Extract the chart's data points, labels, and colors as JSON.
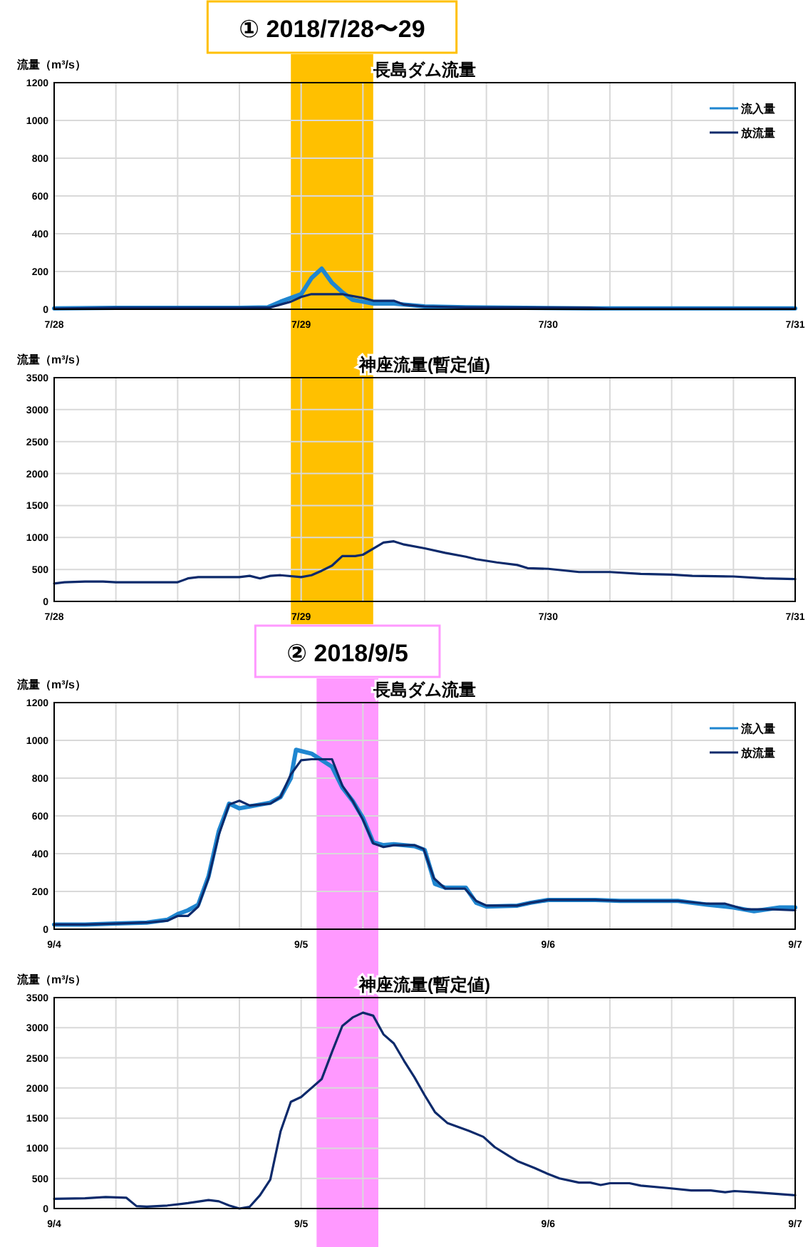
{
  "chart_data": [
    {
      "type": "line",
      "title": "長島ダム流量",
      "ylabel": "流量（m³/s）",
      "xlim": [
        "2018-07-28T00:00",
        "2018-07-31T00:00"
      ],
      "ylim": [
        0,
        1200
      ],
      "xticks": [
        {
          "value": "2018-07-28T00:00",
          "label": "7/28"
        },
        {
          "value": "2018-07-28T06:00",
          "label": null
        },
        {
          "value": "2018-07-28T12:00",
          "label": null
        },
        {
          "value": "2018-07-28T18:00",
          "label": null
        },
        {
          "value": "2018-07-29T00:00",
          "label": "7/29"
        },
        {
          "value": "2018-07-29T06:00",
          "label": null
        },
        {
          "value": "2018-07-29T12:00",
          "label": null
        },
        {
          "value": "2018-07-29T18:00",
          "label": null
        },
        {
          "value": "2018-07-30T00:00",
          "label": "7/30"
        },
        {
          "value": "2018-07-30T06:00",
          "label": null
        },
        {
          "value": "2018-07-30T12:00",
          "label": null
        },
        {
          "value": "2018-07-30T18:00",
          "label": null
        },
        {
          "value": "2018-07-31T00:00",
          "label": "7/31"
        }
      ],
      "yticks": [
        0,
        200,
        400,
        600,
        800,
        1000,
        1200
      ],
      "grid": true,
      "legend": "top right",
      "bands": [
        {
          "axis": "x",
          "from": "2018-07-28T23:00",
          "to": "2018-07-29T07:00",
          "label": "①  2018/7/28〜29",
          "color": "#ffc000"
        }
      ],
      "series": [
        {
          "name": "流入量",
          "color": "#1f86d0",
          "x": [
            "2018-07-28T00:00",
            "2018-07-28T06:00",
            "2018-07-28T12:00",
            "2018-07-28T18:00",
            "2018-07-28T20:45",
            "2018-07-28T22:00",
            "2018-07-29T00:00",
            "2018-07-29T01:00",
            "2018-07-29T02:00",
            "2018-07-29T03:00",
            "2018-07-29T04:00",
            "2018-07-29T05:00",
            "2018-07-29T06:00",
            "2018-07-29T07:00",
            "2018-07-29T09:00",
            "2018-07-29T10:00",
            "2018-07-29T12:00",
            "2018-07-29T16:00",
            "2018-07-30T04:00",
            "2018-07-31T00:00"
          ],
          "values": [
            5,
            8,
            8,
            8,
            10,
            40,
            80,
            165,
            215,
            140,
            90,
            50,
            40,
            30,
            30,
            25,
            15,
            10,
            5,
            5
          ]
        },
        {
          "name": "放流量",
          "color": "#0d2a6b",
          "x": [
            "2018-07-28T00:00",
            "2018-07-28T06:00",
            "2018-07-28T12:00",
            "2018-07-28T18:00",
            "2018-07-28T21:00",
            "2018-07-28T23:00",
            "2018-07-29T00:00",
            "2018-07-29T01:00",
            "2018-07-29T04:00",
            "2018-07-29T06:00",
            "2018-07-29T07:00",
            "2018-07-29T09:00",
            "2018-07-29T10:00",
            "2018-07-29T12:00",
            "2018-07-29T16:00",
            "2018-07-30T04:00",
            "2018-07-30T06:00",
            "2018-07-31T00:00"
          ],
          "values": [
            3,
            8,
            8,
            8,
            10,
            40,
            65,
            80,
            80,
            60,
            45,
            45,
            25,
            15,
            10,
            8,
            3,
            3
          ]
        }
      ]
    },
    {
      "type": "line",
      "title": "神座流量(暫定値)",
      "ylabel": "流量（m³/s）",
      "xlim": [
        "2018-07-28T00:00",
        "2018-07-31T00:00"
      ],
      "ylim": [
        0,
        3500
      ],
      "xticks": [
        {
          "value": "2018-07-28T00:00",
          "label": "7/28"
        },
        {
          "value": "2018-07-28T06:00",
          "label": null
        },
        {
          "value": "2018-07-28T12:00",
          "label": null
        },
        {
          "value": "2018-07-28T18:00",
          "label": null
        },
        {
          "value": "2018-07-29T00:00",
          "label": "7/29"
        },
        {
          "value": "2018-07-29T06:00",
          "label": null
        },
        {
          "value": "2018-07-29T12:00",
          "label": null
        },
        {
          "value": "2018-07-29T18:00",
          "label": null
        },
        {
          "value": "2018-07-30T00:00",
          "label": "7/30"
        },
        {
          "value": "2018-07-30T06:00",
          "label": null
        },
        {
          "value": "2018-07-30T12:00",
          "label": null
        },
        {
          "value": "2018-07-30T18:00",
          "label": null
        },
        {
          "value": "2018-07-31T00:00",
          "label": "7/31"
        }
      ],
      "yticks": [
        0,
        500,
        1000,
        1500,
        2000,
        2500,
        3000,
        3500
      ],
      "grid": true,
      "bands": [
        {
          "axis": "x",
          "from": "2018-07-28T23:00",
          "to": "2018-07-29T07:00",
          "color": "#ffc000"
        }
      ],
      "series": [
        {
          "color": "#0d2a6b",
          "x": [
            "2018-07-28T00:00",
            "2018-07-28T01:00",
            "2018-07-28T03:00",
            "2018-07-28T04:45",
            "2018-07-28T06:00",
            "2018-07-28T08:00",
            "2018-07-28T09:45",
            "2018-07-28T12:00",
            "2018-07-28T13:00",
            "2018-07-28T14:00",
            "2018-07-28T18:00",
            "2018-07-28T19:00",
            "2018-07-28T20:00",
            "2018-07-28T21:00",
            "2018-07-28T22:00",
            "2018-07-29T00:00",
            "2018-07-29T01:00",
            "2018-07-29T02:00",
            "2018-07-29T03:00",
            "2018-07-29T04:00",
            "2018-07-29T05:15",
            "2018-07-29T06:00",
            "2018-07-29T08:00",
            "2018-07-29T09:00",
            "2018-07-29T10:00",
            "2018-07-29T12:00",
            "2018-07-29T14:00",
            "2018-07-29T16:00",
            "2018-07-29T17:00",
            "2018-07-29T19:00",
            "2018-07-29T21:00",
            "2018-07-29T22:00",
            "2018-07-30T00:00",
            "2018-07-30T03:00",
            "2018-07-30T06:00",
            "2018-07-30T09:00",
            "2018-07-30T12:00",
            "2018-07-30T14:00",
            "2018-07-30T18:00",
            "2018-07-30T21:00",
            "2018-07-31T00:00"
          ],
          "values": [
            280,
            300,
            310,
            310,
            300,
            300,
            300,
            300,
            360,
            380,
            380,
            400,
            360,
            400,
            410,
            380,
            410,
            480,
            560,
            710,
            710,
            730,
            920,
            940,
            890,
            830,
            760,
            700,
            660,
            610,
            570,
            520,
            510,
            460,
            460,
            430,
            420,
            400,
            390,
            360,
            350
          ]
        }
      ]
    },
    {
      "type": "line",
      "title": "長島ダム流量",
      "ylabel": "流量（m³/s）",
      "xlim": [
        "2018-09-04T00:00",
        "2018-09-07T00:00"
      ],
      "ylim": [
        0,
        1200
      ],
      "xticks": [
        {
          "value": "2018-09-04T00:00",
          "label": "9/4"
        },
        {
          "value": "2018-09-04T06:00",
          "label": null
        },
        {
          "value": "2018-09-04T12:00",
          "label": null
        },
        {
          "value": "2018-09-04T18:00",
          "label": null
        },
        {
          "value": "2018-09-05T00:00",
          "label": "9/5"
        },
        {
          "value": "2018-09-05T06:00",
          "label": null
        },
        {
          "value": "2018-09-05T12:00",
          "label": null
        },
        {
          "value": "2018-09-05T18:00",
          "label": null
        },
        {
          "value": "2018-09-06T00:00",
          "label": "9/6"
        },
        {
          "value": "2018-09-06T06:00",
          "label": null
        },
        {
          "value": "2018-09-06T12:00",
          "label": null
        },
        {
          "value": "2018-09-06T18:00",
          "label": null
        },
        {
          "value": "2018-09-07T00:00",
          "label": "9/7"
        }
      ],
      "yticks": [
        0,
        200,
        400,
        600,
        800,
        1000,
        1200
      ],
      "grid": true,
      "legend": "top right",
      "bands": [
        {
          "axis": "x",
          "from": "2018-09-05T01:30",
          "to": "2018-09-05T07:30",
          "label": "②  2018/9/5",
          "color": "#ff99ff"
        }
      ],
      "series": [
        {
          "name": "流入量",
          "color": "#1f86d0",
          "x": [
            "2018-09-04T00:00",
            "2018-09-04T03:00",
            "2018-09-04T06:00",
            "2018-09-04T09:00",
            "2018-09-04T11:00",
            "2018-09-04T12:00",
            "2018-09-04T13:00",
            "2018-09-04T14:00",
            "2018-09-04T15:00",
            "2018-09-04T16:00",
            "2018-09-04T17:00",
            "2018-09-04T18:00",
            "2018-09-04T19:00",
            "2018-09-04T20:00",
            "2018-09-04T21:00",
            "2018-09-04T22:00",
            "2018-09-04T23:00",
            "2018-09-04T23:30",
            "2018-09-05T01:00",
            "2018-09-05T03:00",
            "2018-09-05T04:00",
            "2018-09-05T05:00",
            "2018-09-05T06:00",
            "2018-09-05T07:00",
            "2018-09-05T08:00",
            "2018-09-05T09:00",
            "2018-09-05T11:00",
            "2018-09-05T12:00",
            "2018-09-05T13:00",
            "2018-09-05T14:00",
            "2018-09-05T16:00",
            "2018-09-05T17:00",
            "2018-09-05T18:00",
            "2018-09-05T21:00",
            "2018-09-05T22:18",
            "2018-09-06T00:00",
            "2018-09-06T04:36",
            "2018-09-06T07:00",
            "2018-09-06T12:36",
            "2018-09-06T15:24",
            "2018-09-06T18:00",
            "2018-09-06T20:00",
            "2018-09-06T22:30",
            "2018-09-07T00:00"
          ],
          "values": [
            25,
            25,
            30,
            35,
            50,
            80,
            100,
            130,
            280,
            520,
            665,
            640,
            650,
            660,
            670,
            700,
            800,
            950,
            930,
            860,
            750,
            680,
            590,
            460,
            445,
            450,
            440,
            420,
            240,
            220,
            220,
            140,
            120,
            125,
            140,
            155,
            155,
            150,
            150,
            130,
            115,
            95,
            115,
            115
          ]
        },
        {
          "name": "放流量",
          "color": "#0d2a6b",
          "x": [
            "2018-09-04T00:00",
            "2018-09-04T03:00",
            "2018-09-04T06:00",
            "2018-09-04T09:00",
            "2018-09-04T11:00",
            "2018-09-04T12:00",
            "2018-09-04T13:00",
            "2018-09-04T14:00",
            "2018-09-04T15:00",
            "2018-09-04T16:00",
            "2018-09-04T17:00",
            "2018-09-04T18:00",
            "2018-09-04T19:00",
            "2018-09-04T20:00",
            "2018-09-04T21:00",
            "2018-09-04T22:00",
            "2018-09-04T23:00",
            "2018-09-05T00:00",
            "2018-09-05T01:00",
            "2018-09-05T03:00",
            "2018-09-05T04:00",
            "2018-09-05T05:00",
            "2018-09-05T06:00",
            "2018-09-05T07:00",
            "2018-09-05T08:00",
            "2018-09-05T09:00",
            "2018-09-05T11:00",
            "2018-09-05T11:54",
            "2018-09-05T12:54",
            "2018-09-05T14:00",
            "2018-09-05T15:54",
            "2018-09-05T17:00",
            "2018-09-05T18:00",
            "2018-09-05T21:00",
            "2018-09-05T22:18",
            "2018-09-06T00:00",
            "2018-09-06T04:36",
            "2018-09-06T07:00",
            "2018-09-06T12:36",
            "2018-09-06T15:24",
            "2018-09-06T17:12",
            "2018-09-06T19:06",
            "2018-09-06T21:48",
            "2018-09-07T00:00"
          ],
          "values": [
            25,
            25,
            30,
            35,
            45,
            70,
            70,
            120,
            270,
            500,
            660,
            680,
            655,
            660,
            665,
            700,
            820,
            895,
            900,
            900,
            760,
            680,
            580,
            455,
            435,
            445,
            445,
            425,
            270,
            215,
            215,
            150,
            125,
            125,
            140,
            155,
            155,
            150,
            150,
            135,
            135,
            105,
            105,
            100
          ]
        }
      ]
    },
    {
      "type": "line",
      "title": "神座流量(暫定値)",
      "ylabel": "流量（m³/s）",
      "xlim": [
        "2018-09-04T00:00",
        "2018-09-07T00:00"
      ],
      "ylim": [
        0,
        3500
      ],
      "xticks": [
        {
          "value": "2018-09-04T00:00",
          "label": "9/4"
        },
        {
          "value": "2018-09-04T06:00",
          "label": null
        },
        {
          "value": "2018-09-04T12:00",
          "label": null
        },
        {
          "value": "2018-09-04T18:00",
          "label": null
        },
        {
          "value": "2018-09-05T00:00",
          "label": "9/5"
        },
        {
          "value": "2018-09-05T06:00",
          "label": null
        },
        {
          "value": "2018-09-05T12:00",
          "label": null
        },
        {
          "value": "2018-09-05T18:00",
          "label": null
        },
        {
          "value": "2018-09-06T00:00",
          "label": "9/6"
        },
        {
          "value": "2018-09-06T06:00",
          "label": null
        },
        {
          "value": "2018-09-06T12:00",
          "label": null
        },
        {
          "value": "2018-09-06T18:00",
          "label": null
        },
        {
          "value": "2018-09-07T00:00",
          "label": "9/7"
        }
      ],
      "yticks": [
        0,
        500,
        1000,
        1500,
        2000,
        2500,
        3000,
        3500
      ],
      "grid": true,
      "bands": [
        {
          "axis": "x",
          "from": "2018-09-05T01:30",
          "to": "2018-09-05T07:30",
          "color": "#ff99ff"
        }
      ],
      "series": [
        {
          "color": "#0d2a6b",
          "x": [
            "2018-09-04T00:00",
            "2018-09-04T03:00",
            "2018-09-04T05:00",
            "2018-09-04T07:00",
            "2018-09-04T08:00",
            "2018-09-04T09:00",
            "2018-09-04T11:00",
            "2018-09-04T13:00",
            "2018-09-04T15:00",
            "2018-09-04T16:00",
            "2018-09-04T17:00",
            "2018-09-04T18:00",
            "2018-09-04T19:00",
            "2018-09-04T20:00",
            "2018-09-04T21:00",
            "2018-09-04T22:00",
            "2018-09-04T23:00",
            "2018-09-05T00:00",
            "2018-09-05T01:00",
            "2018-09-05T02:00",
            "2018-09-05T03:00",
            "2018-09-05T04:00",
            "2018-09-05T05:00",
            "2018-09-05T06:00",
            "2018-09-05T07:00",
            "2018-09-05T08:00",
            "2018-09-05T09:00",
            "2018-09-05T10:00",
            "2018-09-05T11:00",
            "2018-09-05T12:00",
            "2018-09-05T13:00",
            "2018-09-05T14:12",
            "2018-09-05T16:18",
            "2018-09-05T17:42",
            "2018-09-05T18:48",
            "2018-09-05T20:12",
            "2018-09-05T21:06",
            "2018-09-05T22:42",
            "2018-09-05T23:54",
            "2018-09-06T01:06",
            "2018-09-06T03:00",
            "2018-09-06T04:06",
            "2018-09-06T05:06",
            "2018-09-06T06:00",
            "2018-09-06T07:54",
            "2018-09-06T09:00",
            "2018-09-06T11:36",
            "2018-09-06T13:54",
            "2018-09-06T15:48",
            "2018-09-06T17:12",
            "2018-09-06T18:06",
            "2018-09-06T20:00",
            "2018-09-07T00:00"
          ],
          "values": [
            160,
            170,
            190,
            180,
            40,
            30,
            50,
            90,
            140,
            120,
            50,
            0,
            30,
            220,
            480,
            1280,
            1770,
            1850,
            2000,
            2150,
            2600,
            3030,
            3170,
            3250,
            3200,
            2890,
            2740,
            2450,
            2180,
            1880,
            1600,
            1420,
            1290,
            1190,
            1020,
            870,
            780,
            670,
            580,
            500,
            430,
            430,
            390,
            420,
            420,
            380,
            340,
            300,
            300,
            270,
            290,
            270,
            220
          ]
        }
      ]
    }
  ]
}
